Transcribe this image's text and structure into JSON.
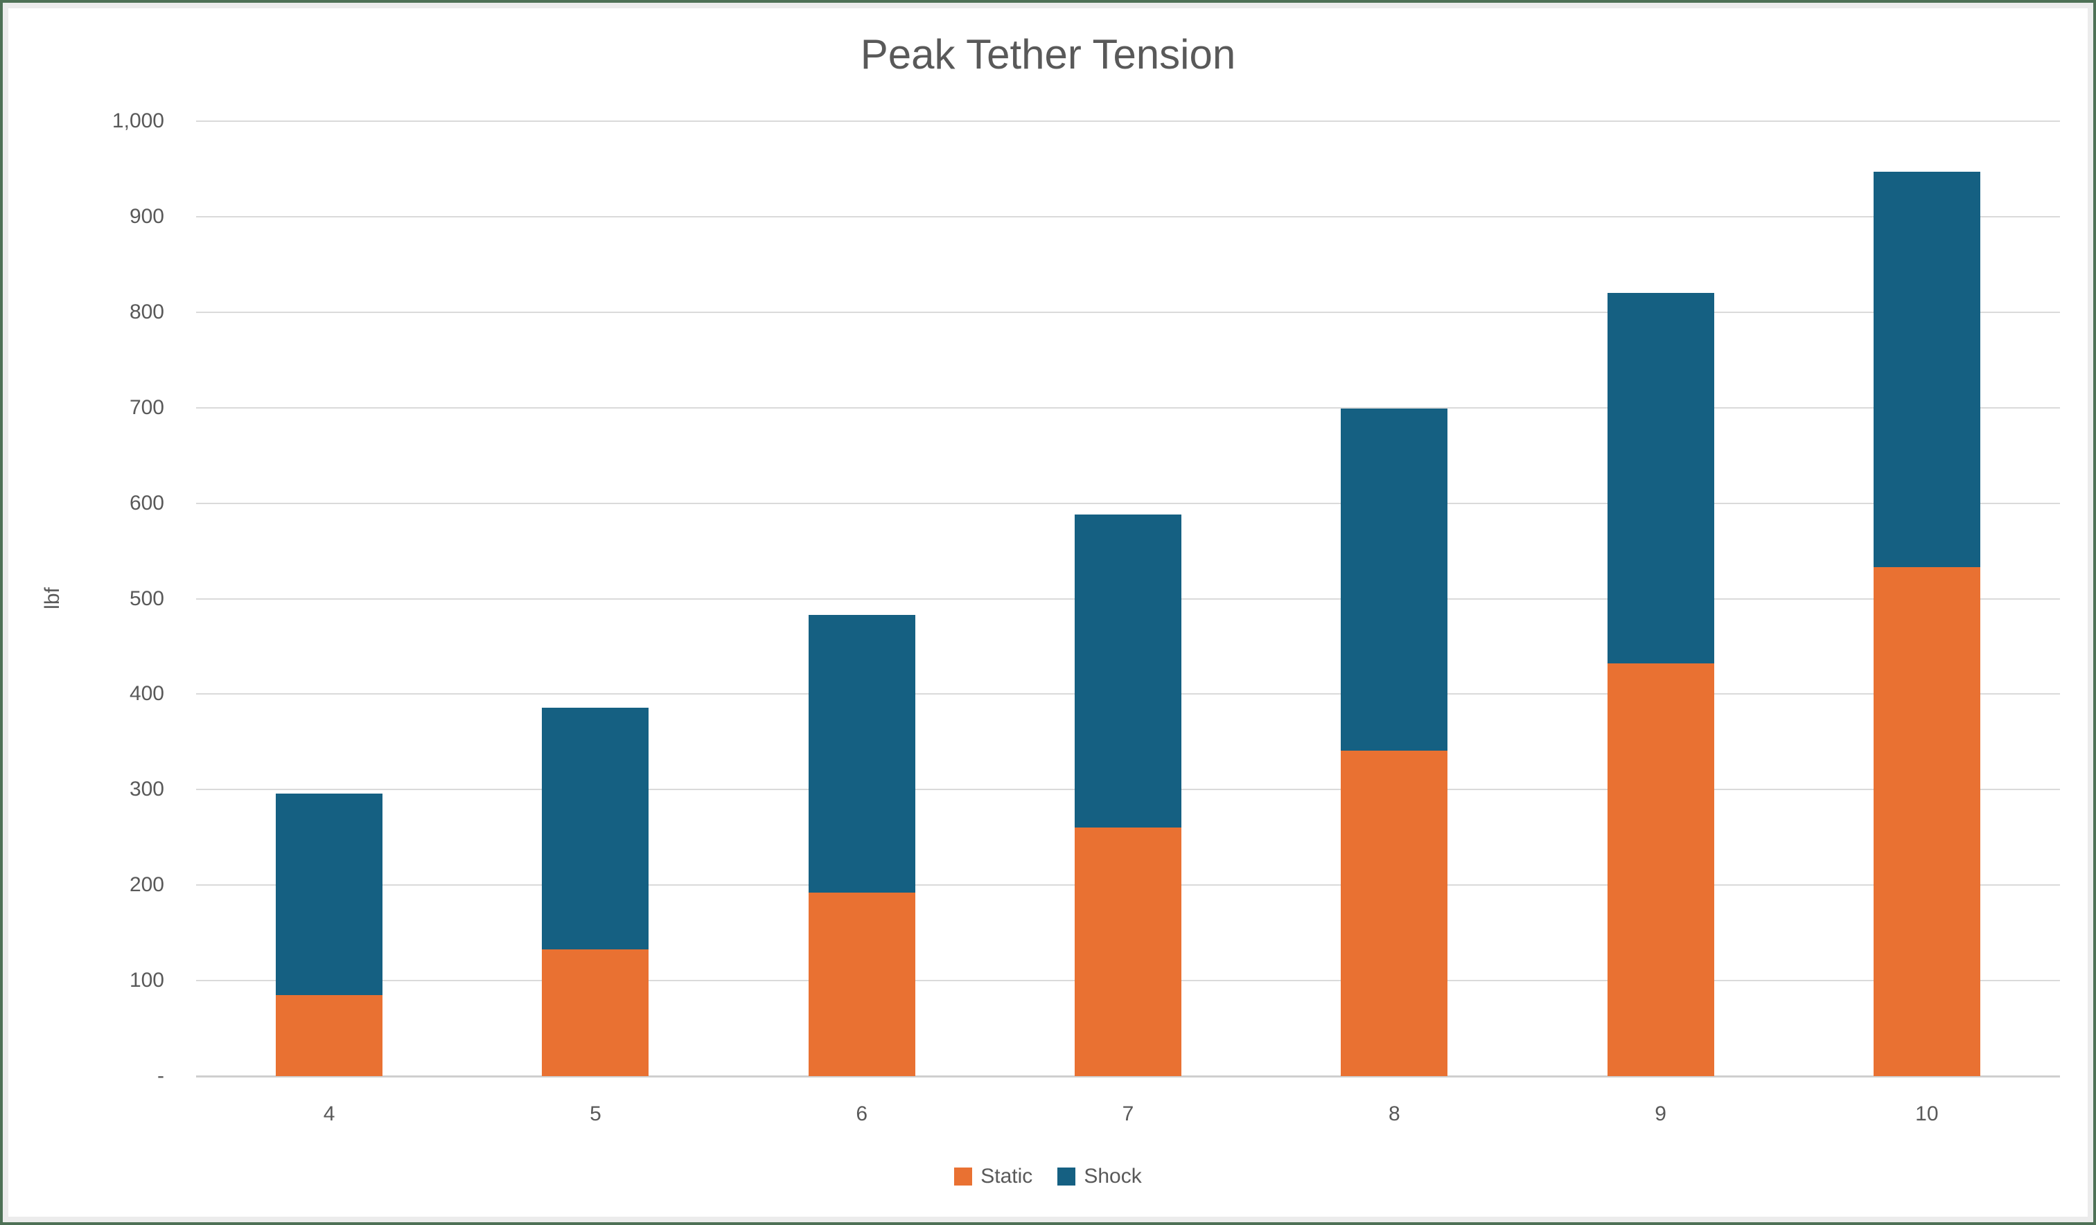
{
  "window": {
    "border_color": "#4e7156",
    "inner_border_color": "#ececec",
    "background": "#ffffff"
  },
  "chart": {
    "title": "Peak Tether Tension",
    "text_color": "#595959",
    "gridline_color": "#dadada",
    "axis_line_color": "#cfcfcf",
    "y_axis": {
      "label": "lbf",
      "tick_labels": [
        "1,000",
        "900",
        "800",
        "700",
        "600",
        "500",
        "400",
        "300",
        "200",
        "100",
        "-"
      ],
      "tick_values": [
        1000,
        900,
        800,
        700,
        600,
        500,
        400,
        300,
        200,
        100,
        0
      ]
    },
    "x_axis": {
      "categories": [
        "4",
        "5",
        "6",
        "7",
        "8",
        "9",
        "10"
      ]
    },
    "legend": {
      "position": "bottom",
      "items": [
        {
          "label": "Static",
          "color": "#E97132"
        },
        {
          "label": "Shock",
          "color": "#156082"
        }
      ]
    }
  },
  "chart_data": {
    "type": "bar",
    "stacked": true,
    "title": "Peak Tether Tension",
    "xlabel": "",
    "ylabel": "lbf",
    "ylim": [
      0,
      1000
    ],
    "ytick_interval": 100,
    "zero_tick_label": "-",
    "grid": true,
    "legend_position": "bottom",
    "categories": [
      4,
      5,
      6,
      7,
      8,
      9,
      10
    ],
    "series": [
      {
        "name": "Static",
        "color": "#E97132",
        "values": [
          85,
          133,
          192,
          260,
          341,
          432,
          533
        ]
      },
      {
        "name": "Shock",
        "color": "#156082",
        "values": [
          211,
          253,
          291,
          328,
          358,
          388,
          414
        ]
      }
    ],
    "stack_totals": [
      296,
      386,
      483,
      588,
      699,
      820,
      947
    ]
  }
}
